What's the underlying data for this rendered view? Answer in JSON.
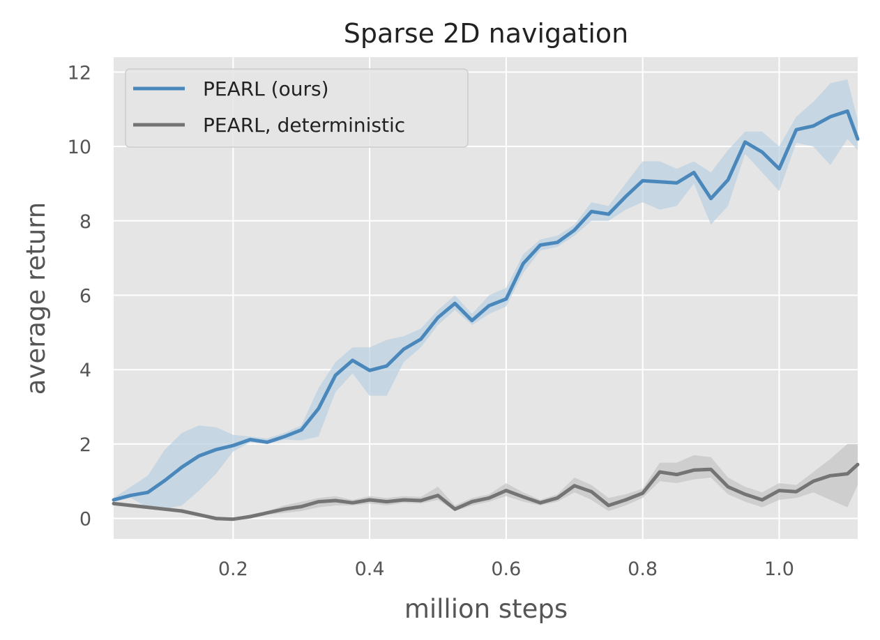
{
  "chart_data": {
    "type": "line",
    "title": "Sparse 2D navigation",
    "xlabel": "million steps",
    "ylabel": "average return",
    "xlim": [
      0.025,
      1.115
    ],
    "ylim": [
      -0.55,
      12.4
    ],
    "xticks": [
      0.2,
      0.4,
      0.6,
      0.8,
      1.0
    ],
    "xtick_labels": [
      "0.2",
      "0.4",
      "0.6",
      "0.8",
      "1.0"
    ],
    "yticks": [
      0,
      2,
      4,
      6,
      8,
      10,
      12
    ],
    "ytick_labels": [
      "0",
      "2",
      "4",
      "6",
      "8",
      "10",
      "12"
    ],
    "grid": true,
    "legend_position": "top-left",
    "background_color": "#e5e5e5",
    "series": [
      {
        "name": "PEARL (ours)",
        "color": "#4a88bc",
        "band_color": "#b9d0e1",
        "points": [
          [
            0.025,
            0.5
          ],
          [
            0.05,
            0.62
          ],
          [
            0.075,
            0.7
          ],
          [
            0.1,
            1.02
          ],
          [
            0.125,
            1.38
          ],
          [
            0.15,
            1.68
          ],
          [
            0.175,
            1.85
          ],
          [
            0.2,
            1.96
          ],
          [
            0.225,
            2.12
          ],
          [
            0.25,
            2.05
          ],
          [
            0.275,
            2.2
          ],
          [
            0.3,
            2.38
          ],
          [
            0.325,
            2.95
          ],
          [
            0.35,
            3.85
          ],
          [
            0.375,
            4.25
          ],
          [
            0.4,
            3.98
          ],
          [
            0.425,
            4.1
          ],
          [
            0.45,
            4.55
          ],
          [
            0.475,
            4.82
          ],
          [
            0.5,
            5.4
          ],
          [
            0.525,
            5.78
          ],
          [
            0.55,
            5.32
          ],
          [
            0.575,
            5.72
          ],
          [
            0.6,
            5.9
          ],
          [
            0.625,
            6.85
          ],
          [
            0.65,
            7.35
          ],
          [
            0.675,
            7.42
          ],
          [
            0.7,
            7.75
          ],
          [
            0.725,
            8.25
          ],
          [
            0.75,
            8.18
          ],
          [
            0.775,
            8.65
          ],
          [
            0.8,
            9.08
          ],
          [
            0.825,
            9.05
          ],
          [
            0.85,
            9.02
          ],
          [
            0.875,
            9.3
          ],
          [
            0.9,
            8.6
          ],
          [
            0.925,
            9.1
          ],
          [
            0.95,
            10.12
          ],
          [
            0.975,
            9.85
          ],
          [
            1.0,
            9.4
          ],
          [
            1.025,
            10.45
          ],
          [
            1.05,
            10.55
          ],
          [
            1.075,
            10.8
          ],
          [
            1.1,
            10.95
          ],
          [
            1.115,
            10.2
          ]
        ],
        "lower": [
          0.45,
          0.55,
          0.3,
          0.25,
          0.35,
          0.75,
          1.2,
          1.8,
          2.05,
          2.0,
          2.12,
          2.1,
          2.2,
          3.4,
          3.9,
          3.3,
          3.3,
          4.2,
          4.6,
          5.2,
          5.6,
          5.2,
          5.5,
          5.7,
          6.6,
          7.2,
          7.3,
          7.6,
          8.0,
          8.0,
          8.3,
          8.5,
          8.3,
          8.4,
          9.0,
          7.9,
          8.4,
          9.8,
          9.3,
          8.8,
          10.1,
          10.0,
          9.5,
          10.2,
          9.9
        ],
        "upper": [
          0.55,
          0.85,
          1.15,
          1.85,
          2.3,
          2.5,
          2.45,
          2.25,
          2.2,
          2.15,
          2.3,
          2.5,
          3.5,
          4.2,
          4.6,
          4.6,
          4.8,
          4.9,
          5.1,
          5.6,
          6.0,
          5.5,
          6.0,
          6.2,
          7.1,
          7.5,
          7.6,
          7.9,
          8.5,
          8.4,
          9.0,
          9.6,
          9.6,
          9.4,
          9.6,
          9.3,
          9.9,
          10.4,
          10.4,
          10.0,
          10.8,
          11.2,
          11.7,
          11.8,
          10.7
        ]
      },
      {
        "name": "PEARL, deterministic",
        "color": "#747474",
        "band_color": "#c4c4c4",
        "points": [
          [
            0.025,
            0.4
          ],
          [
            0.05,
            0.35
          ],
          [
            0.075,
            0.3
          ],
          [
            0.1,
            0.25
          ],
          [
            0.125,
            0.2
          ],
          [
            0.15,
            0.1
          ],
          [
            0.175,
            0.0
          ],
          [
            0.2,
            -0.02
          ],
          [
            0.225,
            0.05
          ],
          [
            0.25,
            0.15
          ],
          [
            0.275,
            0.25
          ],
          [
            0.3,
            0.32
          ],
          [
            0.325,
            0.45
          ],
          [
            0.35,
            0.48
          ],
          [
            0.375,
            0.42
          ],
          [
            0.4,
            0.5
          ],
          [
            0.425,
            0.45
          ],
          [
            0.45,
            0.5
          ],
          [
            0.475,
            0.48
          ],
          [
            0.5,
            0.62
          ],
          [
            0.525,
            0.25
          ],
          [
            0.55,
            0.45
          ],
          [
            0.575,
            0.55
          ],
          [
            0.6,
            0.75
          ],
          [
            0.625,
            0.58
          ],
          [
            0.65,
            0.42
          ],
          [
            0.675,
            0.55
          ],
          [
            0.7,
            0.88
          ],
          [
            0.725,
            0.72
          ],
          [
            0.75,
            0.35
          ],
          [
            0.775,
            0.5
          ],
          [
            0.8,
            0.68
          ],
          [
            0.825,
            1.25
          ],
          [
            0.85,
            1.18
          ],
          [
            0.875,
            1.3
          ],
          [
            0.9,
            1.32
          ],
          [
            0.925,
            0.85
          ],
          [
            0.95,
            0.65
          ],
          [
            0.975,
            0.5
          ],
          [
            1.0,
            0.75
          ],
          [
            1.025,
            0.72
          ],
          [
            1.05,
            1.0
          ],
          [
            1.075,
            1.15
          ],
          [
            1.1,
            1.2
          ],
          [
            1.115,
            1.45
          ]
        ],
        "lower": [
          0.35,
          0.3,
          0.25,
          0.2,
          0.15,
          0.05,
          -0.05,
          -0.05,
          0.0,
          0.1,
          0.15,
          0.2,
          0.3,
          0.35,
          0.35,
          0.4,
          0.35,
          0.42,
          0.4,
          0.5,
          0.2,
          0.35,
          0.45,
          0.6,
          0.45,
          0.35,
          0.45,
          0.7,
          0.5,
          0.2,
          0.35,
          0.55,
          1.0,
          0.95,
          1.05,
          1.1,
          0.65,
          0.45,
          0.3,
          0.5,
          0.55,
          0.7,
          0.5,
          0.3,
          0.9
        ],
        "upper": [
          0.45,
          0.4,
          0.35,
          0.3,
          0.25,
          0.15,
          0.05,
          0.02,
          0.1,
          0.2,
          0.35,
          0.45,
          0.55,
          0.6,
          0.5,
          0.6,
          0.55,
          0.6,
          0.58,
          0.85,
          0.35,
          0.55,
          0.65,
          0.95,
          0.7,
          0.5,
          0.65,
          1.1,
          0.9,
          0.55,
          0.65,
          0.8,
          1.5,
          1.5,
          1.7,
          1.65,
          1.1,
          0.85,
          0.7,
          0.95,
          0.9,
          1.25,
          1.6,
          2.0,
          2.0
        ]
      }
    ]
  }
}
